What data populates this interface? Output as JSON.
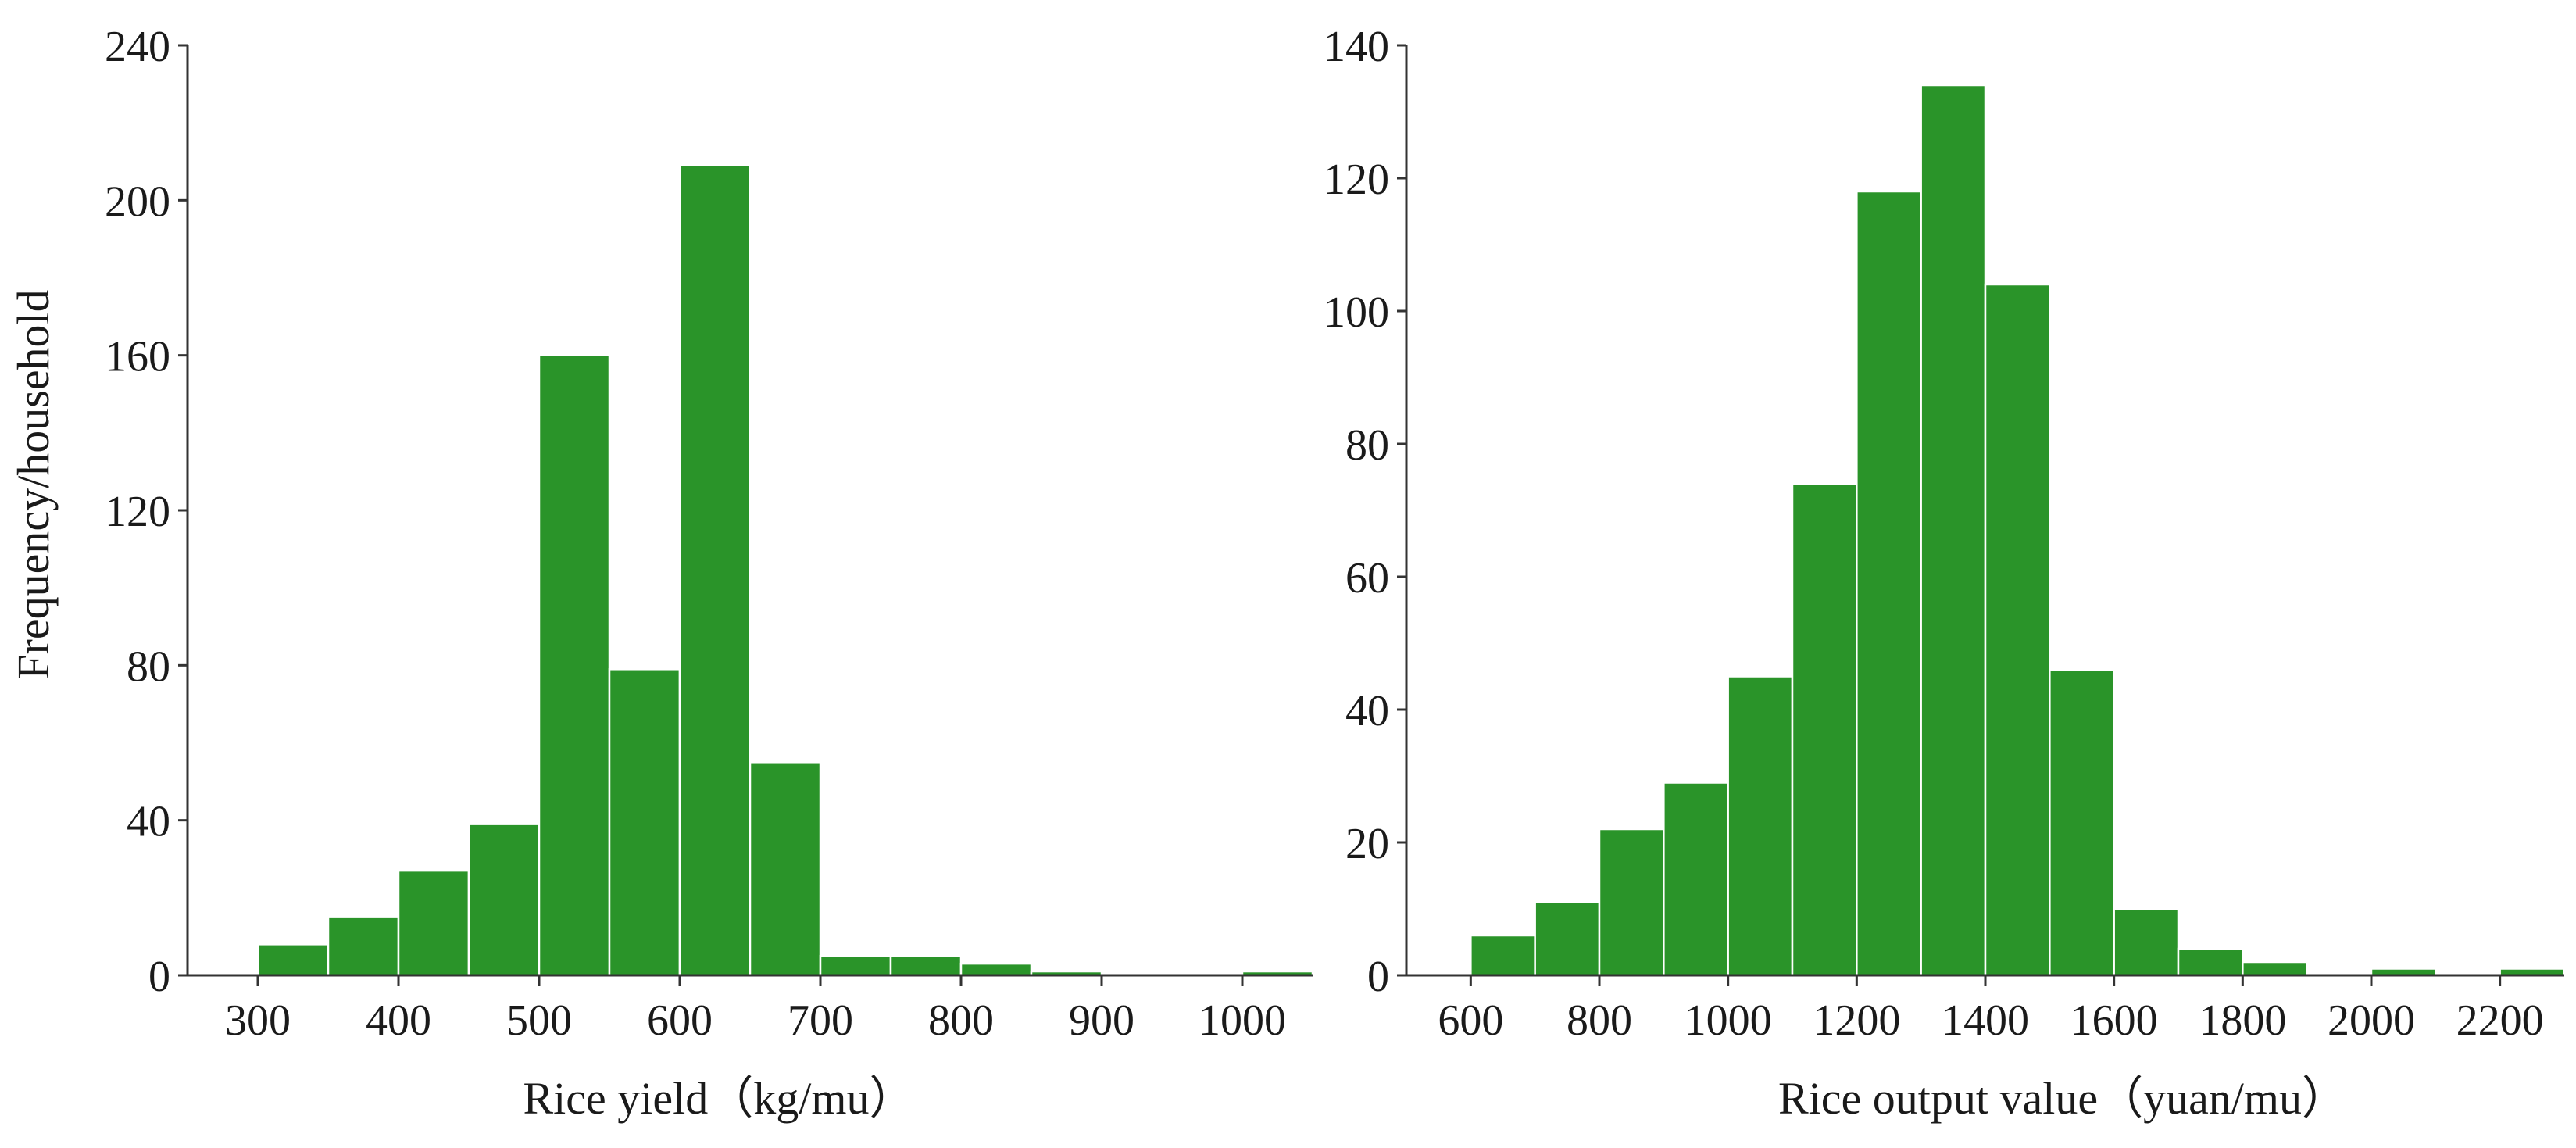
{
  "colors": {
    "bar": "#2a9429",
    "axis": "#333333"
  },
  "ylabel": "Frequency/household",
  "chart_data": [
    {
      "type": "bar",
      "xlabel": "Rice yield（kg/mu）",
      "ylabel": "Frequency/household",
      "bin_edges": [
        300,
        350,
        400,
        450,
        500,
        550,
        600,
        650,
        700,
        750,
        800,
        850,
        900,
        950,
        1000,
        1050
      ],
      "values": [
        8,
        15,
        27,
        39,
        160,
        79,
        209,
        55,
        5,
        5,
        3,
        1,
        0,
        0,
        1
      ],
      "xlim": [
        250,
        1050
      ],
      "ylim": [
        0,
        240
      ],
      "xticks": [
        "300",
        "400",
        "500",
        "600",
        "700",
        "800",
        "900",
        "1000"
      ],
      "yticks": [
        "0",
        "40",
        "80",
        "120",
        "160",
        "200",
        "240"
      ],
      "grid": false
    },
    {
      "type": "bar",
      "xlabel": "Rice output value（yuan/mu）",
      "ylabel": "",
      "bin_edges": [
        600,
        700,
        800,
        900,
        1000,
        1100,
        1200,
        1300,
        1400,
        1500,
        1600,
        1700,
        1800,
        1900,
        2000,
        2100,
        2200,
        2300
      ],
      "values": [
        6,
        11,
        22,
        29,
        45,
        74,
        118,
        134,
        104,
        46,
        10,
        4,
        2,
        0,
        1,
        0,
        1
      ],
      "xlim": [
        500,
        2300
      ],
      "ylim": [
        0,
        140
      ],
      "xticks": [
        "600",
        "800",
        "1000",
        "1200",
        "1400",
        "1600",
        "1800",
        "2000",
        "2200"
      ],
      "yticks": [
        "0",
        "20",
        "40",
        "60",
        "80",
        "100",
        "120",
        "140"
      ],
      "grid": false
    }
  ]
}
